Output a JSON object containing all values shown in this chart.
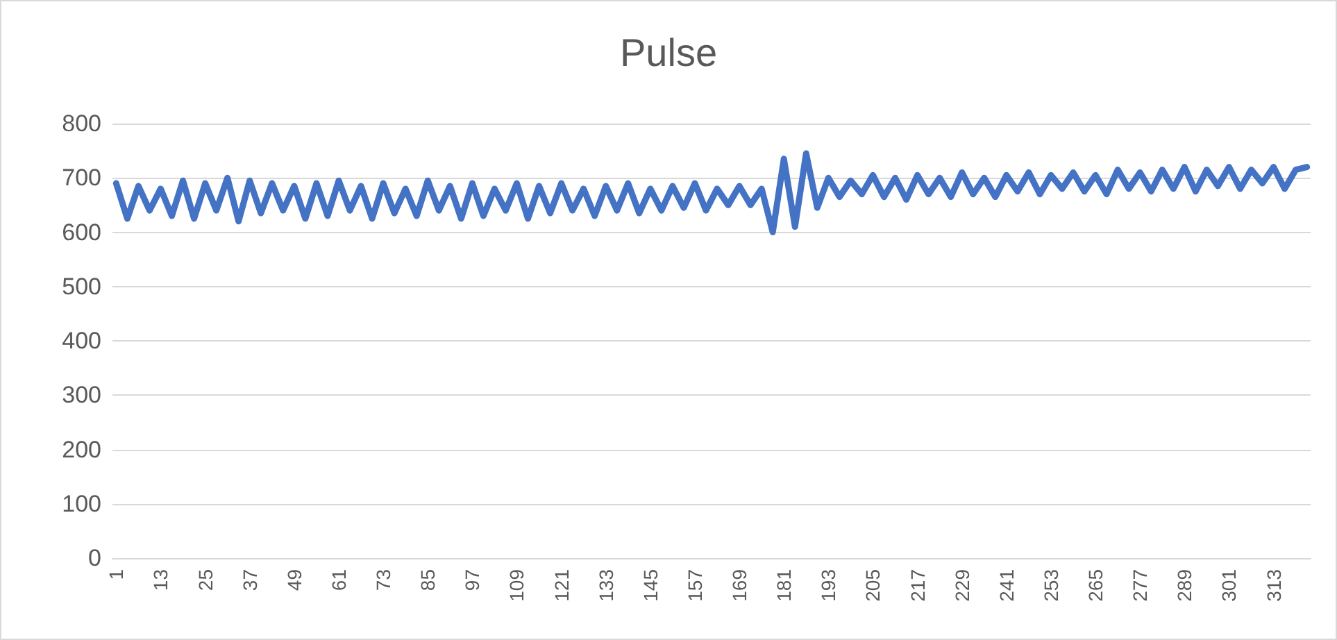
{
  "chart_data": {
    "type": "line",
    "title": "Pulse",
    "series": [
      {
        "color": "#4472c4",
        "x": [
          1,
          4,
          7,
          10,
          13,
          16,
          19,
          22,
          25,
          28,
          31,
          34,
          37,
          40,
          43,
          46,
          49,
          52,
          55,
          58,
          61,
          64,
          67,
          70,
          73,
          76,
          79,
          82,
          85,
          88,
          91,
          94,
          97,
          100,
          103,
          106,
          109,
          112,
          115,
          118,
          121,
          124,
          127,
          130,
          133,
          136,
          139,
          142,
          145,
          148,
          151,
          154,
          157,
          160,
          163,
          166,
          169,
          172,
          175,
          178,
          181,
          184,
          187,
          190,
          193,
          196,
          199,
          202,
          205,
          208,
          211,
          214,
          217,
          220,
          223,
          226,
          229,
          232,
          235,
          238,
          241,
          244,
          247,
          250,
          253,
          256,
          259,
          262,
          265,
          268,
          271,
          274,
          277,
          280,
          283,
          286,
          289,
          292,
          295,
          298,
          301,
          304,
          307,
          310,
          313,
          316,
          319,
          322
        ],
        "values": [
          690,
          625,
          685,
          640,
          680,
          630,
          695,
          625,
          690,
          640,
          700,
          620,
          695,
          635,
          690,
          640,
          685,
          625,
          690,
          630,
          695,
          640,
          685,
          625,
          690,
          635,
          680,
          630,
          695,
          640,
          685,
          625,
          690,
          630,
          680,
          640,
          690,
          625,
          685,
          635,
          690,
          640,
          680,
          630,
          685,
          640,
          690,
          635,
          680,
          640,
          685,
          645,
          690,
          640,
          680,
          650,
          685,
          650,
          680,
          600,
          735,
          610,
          745,
          645,
          700,
          665,
          695,
          670,
          705,
          665,
          700,
          660,
          705,
          670,
          700,
          665,
          710,
          670,
          700,
          665,
          705,
          675,
          710,
          670,
          705,
          680,
          710,
          675,
          705,
          670,
          715,
          680,
          710,
          675,
          715,
          680,
          720,
          675,
          715,
          685,
          720,
          680,
          715,
          690,
          720,
          680,
          715,
          720
        ]
      }
    ],
    "xlim": [
      0,
      323
    ],
    "xticks": [
      1,
      13,
      25,
      37,
      49,
      61,
      73,
      85,
      97,
      109,
      121,
      133,
      145,
      157,
      169,
      181,
      193,
      205,
      217,
      229,
      241,
      253,
      265,
      277,
      289,
      301,
      313
    ],
    "ylim": [
      0,
      800
    ],
    "yticks": [
      0,
      100,
      200,
      300,
      400,
      500,
      600,
      700,
      800
    ],
    "grid": "y",
    "marker": "none",
    "line_style": "solid"
  }
}
